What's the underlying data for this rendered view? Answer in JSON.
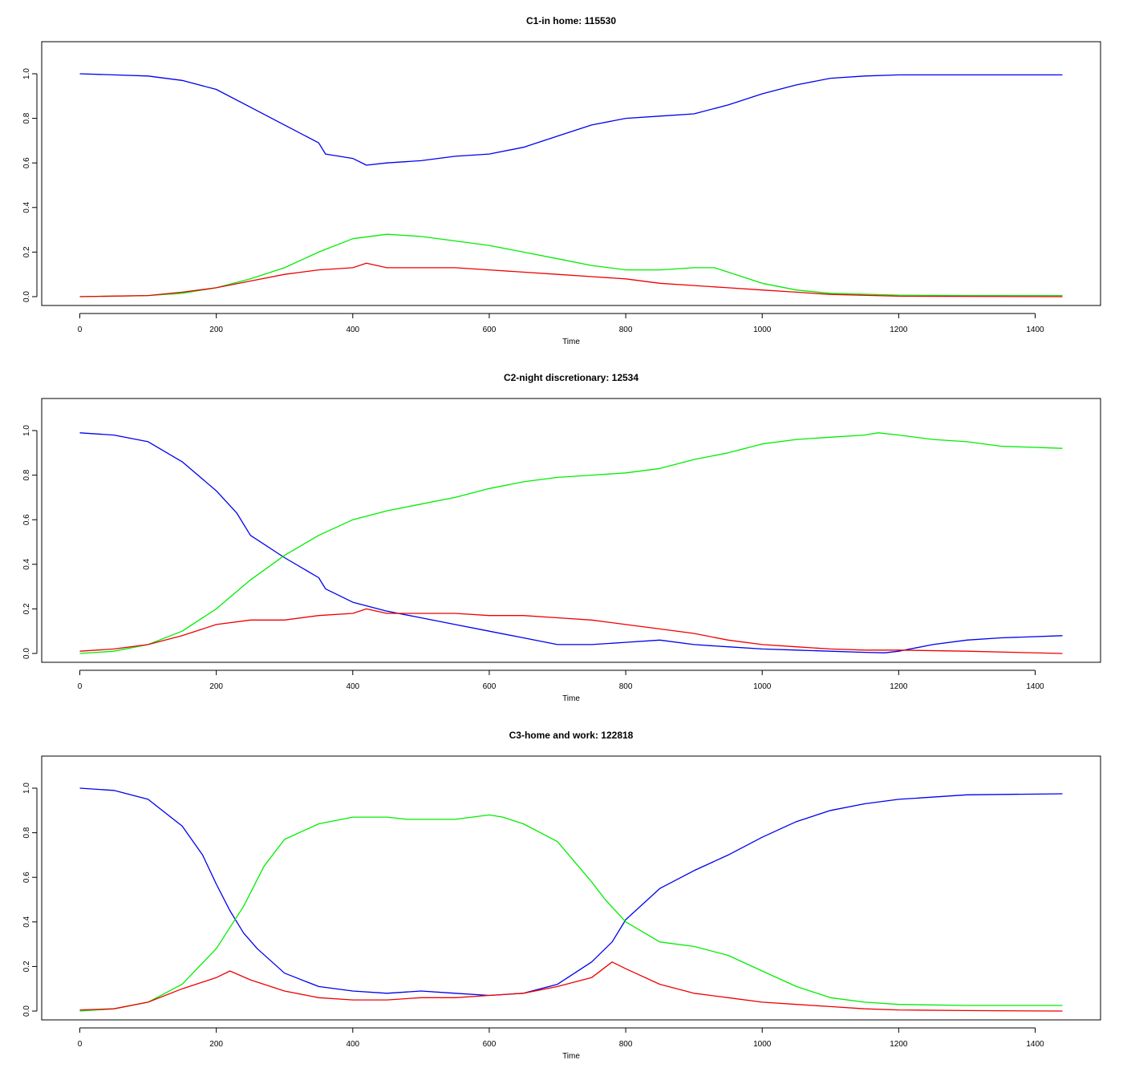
{
  "chart_data": [
    {
      "type": "line",
      "title": "C1-in home: 115530",
      "xlabel": "Time",
      "ylabel": "",
      "xlim": [
        0,
        1440
      ],
      "ylim": [
        0,
        1.0
      ],
      "xticks": [
        "0",
        "200",
        "400",
        "600",
        "800",
        "1000",
        "1200",
        "1400"
      ],
      "yticks": [
        "0.0",
        "0.2",
        "0.4",
        "0.6",
        "0.8",
        "1.0"
      ],
      "grid": false,
      "series": [
        {
          "color": "#0000ee",
          "x": [
            0,
            50,
            100,
            150,
            200,
            250,
            300,
            350,
            360,
            400,
            420,
            450,
            500,
            550,
            600,
            650,
            700,
            750,
            800,
            850,
            900,
            950,
            1000,
            1050,
            1100,
            1150,
            1200,
            1300,
            1440
          ],
          "y": [
            1.0,
            0.995,
            0.99,
            0.97,
            0.93,
            0.85,
            0.77,
            0.69,
            0.64,
            0.62,
            0.59,
            0.6,
            0.61,
            0.63,
            0.64,
            0.67,
            0.72,
            0.77,
            0.8,
            0.81,
            0.82,
            0.86,
            0.91,
            0.95,
            0.98,
            0.99,
            0.995,
            0.995,
            0.995
          ]
        },
        {
          "color": "#00ee00",
          "x": [
            0,
            100,
            150,
            200,
            250,
            300,
            350,
            400,
            450,
            500,
            550,
            600,
            650,
            700,
            750,
            800,
            850,
            900,
            930,
            950,
            1000,
            1050,
            1100,
            1200,
            1300,
            1440
          ],
          "y": [
            0.0,
            0.005,
            0.015,
            0.04,
            0.08,
            0.13,
            0.2,
            0.26,
            0.28,
            0.27,
            0.25,
            0.23,
            0.2,
            0.17,
            0.14,
            0.12,
            0.12,
            0.13,
            0.13,
            0.11,
            0.06,
            0.03,
            0.015,
            0.007,
            0.005,
            0.005
          ]
        },
        {
          "color": "#ee0000",
          "x": [
            0,
            100,
            150,
            200,
            250,
            300,
            350,
            400,
            420,
            450,
            500,
            550,
            600,
            650,
            700,
            750,
            800,
            850,
            900,
            950,
            1000,
            1050,
            1100,
            1200,
            1440
          ],
          "y": [
            0.0,
            0.005,
            0.02,
            0.04,
            0.07,
            0.1,
            0.12,
            0.13,
            0.15,
            0.13,
            0.13,
            0.13,
            0.12,
            0.11,
            0.1,
            0.09,
            0.08,
            0.06,
            0.05,
            0.04,
            0.03,
            0.02,
            0.01,
            0.002,
            0.0
          ]
        }
      ]
    },
    {
      "type": "line",
      "title": "C2-night discretionary: 12534",
      "xlabel": "Time",
      "ylabel": "",
      "xlim": [
        0,
        1440
      ],
      "ylim": [
        0,
        1.0
      ],
      "xticks": [
        "0",
        "200",
        "400",
        "600",
        "800",
        "1000",
        "1200",
        "1400"
      ],
      "yticks": [
        "0.0",
        "0.2",
        "0.4",
        "0.6",
        "0.8",
        "1.0"
      ],
      "grid": false,
      "series": [
        {
          "color": "#0000ee",
          "x": [
            0,
            50,
            100,
            150,
            200,
            230,
            250,
            300,
            350,
            360,
            400,
            450,
            500,
            550,
            600,
            650,
            700,
            750,
            800,
            850,
            900,
            950,
            1000,
            1050,
            1100,
            1150,
            1180,
            1200,
            1250,
            1300,
            1350,
            1440
          ],
          "y": [
            0.99,
            0.98,
            0.95,
            0.86,
            0.73,
            0.63,
            0.53,
            0.43,
            0.34,
            0.29,
            0.23,
            0.19,
            0.16,
            0.13,
            0.1,
            0.07,
            0.04,
            0.04,
            0.05,
            0.06,
            0.04,
            0.03,
            0.02,
            0.015,
            0.01,
            0.005,
            0.003,
            0.01,
            0.04,
            0.06,
            0.07,
            0.08
          ]
        },
        {
          "color": "#00ee00",
          "x": [
            0,
            50,
            100,
            150,
            200,
            250,
            300,
            350,
            400,
            450,
            500,
            550,
            600,
            650,
            700,
            750,
            800,
            850,
            900,
            950,
            1000,
            1050,
            1100,
            1150,
            1170,
            1200,
            1250,
            1300,
            1350,
            1440
          ],
          "y": [
            0.0,
            0.01,
            0.04,
            0.1,
            0.2,
            0.33,
            0.44,
            0.53,
            0.6,
            0.64,
            0.67,
            0.7,
            0.74,
            0.77,
            0.79,
            0.8,
            0.81,
            0.83,
            0.87,
            0.9,
            0.94,
            0.96,
            0.97,
            0.98,
            0.99,
            0.98,
            0.96,
            0.95,
            0.93,
            0.92
          ]
        },
        {
          "color": "#ee0000",
          "x": [
            0,
            50,
            100,
            150,
            200,
            250,
            300,
            350,
            400,
            420,
            450,
            500,
            550,
            600,
            650,
            700,
            750,
            800,
            850,
            900,
            950,
            1000,
            1050,
            1100,
            1150,
            1200,
            1300,
            1440
          ],
          "y": [
            0.01,
            0.02,
            0.04,
            0.08,
            0.13,
            0.15,
            0.15,
            0.17,
            0.18,
            0.2,
            0.18,
            0.18,
            0.18,
            0.17,
            0.17,
            0.16,
            0.15,
            0.13,
            0.11,
            0.09,
            0.06,
            0.04,
            0.03,
            0.02,
            0.015,
            0.015,
            0.01,
            0.0
          ]
        }
      ]
    },
    {
      "type": "line",
      "title": "C3-home and work: 122818",
      "xlabel": "Time",
      "ylabel": "",
      "xlim": [
        0,
        1440
      ],
      "ylim": [
        0,
        1.0
      ],
      "xticks": [
        "0",
        "200",
        "400",
        "600",
        "800",
        "1000",
        "1200",
        "1400"
      ],
      "yticks": [
        "0.0",
        "0.2",
        "0.4",
        "0.6",
        "0.8",
        "1.0"
      ],
      "grid": false,
      "series": [
        {
          "color": "#0000ee",
          "x": [
            0,
            50,
            100,
            150,
            180,
            200,
            220,
            240,
            260,
            300,
            350,
            400,
            450,
            500,
            550,
            600,
            650,
            700,
            750,
            780,
            800,
            850,
            900,
            950,
            1000,
            1050,
            1100,
            1150,
            1200,
            1300,
            1440
          ],
          "y": [
            1.0,
            0.99,
            0.95,
            0.83,
            0.7,
            0.57,
            0.45,
            0.35,
            0.28,
            0.17,
            0.11,
            0.09,
            0.08,
            0.09,
            0.08,
            0.07,
            0.08,
            0.12,
            0.22,
            0.31,
            0.41,
            0.55,
            0.63,
            0.7,
            0.78,
            0.85,
            0.9,
            0.93,
            0.95,
            0.97,
            0.975
          ]
        },
        {
          "color": "#00ee00",
          "x": [
            0,
            50,
            100,
            150,
            200,
            240,
            270,
            300,
            350,
            400,
            450,
            480,
            550,
            600,
            620,
            650,
            700,
            750,
            770,
            800,
            850,
            900,
            950,
            1000,
            1050,
            1100,
            1150,
            1200,
            1300,
            1440
          ],
          "y": [
            0.0,
            0.01,
            0.04,
            0.12,
            0.28,
            0.47,
            0.65,
            0.77,
            0.84,
            0.87,
            0.87,
            0.86,
            0.86,
            0.88,
            0.87,
            0.84,
            0.76,
            0.58,
            0.5,
            0.4,
            0.31,
            0.29,
            0.25,
            0.18,
            0.11,
            0.06,
            0.04,
            0.03,
            0.025,
            0.025
          ]
        },
        {
          "color": "#ee0000",
          "x": [
            0,
            50,
            100,
            150,
            200,
            220,
            250,
            300,
            350,
            400,
            450,
            500,
            550,
            600,
            650,
            700,
            750,
            780,
            800,
            850,
            900,
            950,
            1000,
            1050,
            1100,
            1150,
            1200,
            1300,
            1440
          ],
          "y": [
            0.005,
            0.01,
            0.04,
            0.1,
            0.15,
            0.18,
            0.14,
            0.09,
            0.06,
            0.05,
            0.05,
            0.06,
            0.06,
            0.07,
            0.08,
            0.11,
            0.15,
            0.22,
            0.19,
            0.12,
            0.08,
            0.06,
            0.04,
            0.03,
            0.02,
            0.01,
            0.005,
            0.002,
            0.0
          ]
        }
      ]
    }
  ]
}
